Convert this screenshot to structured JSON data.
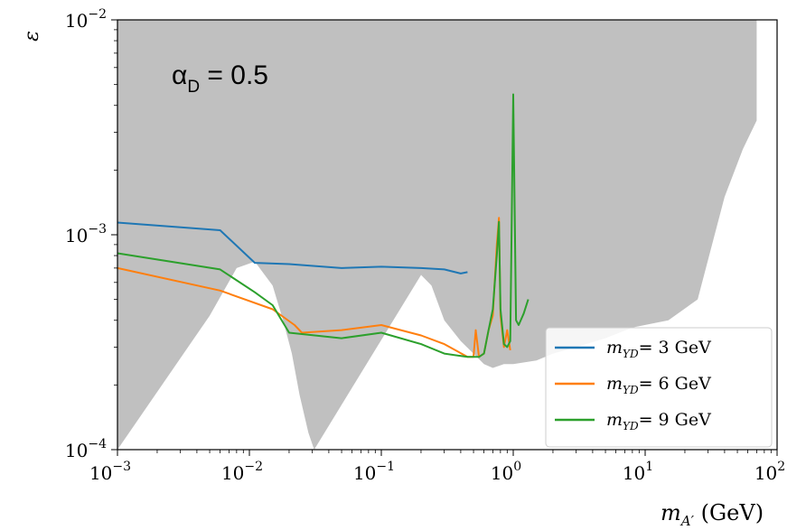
{
  "chart_data": {
    "type": "line",
    "title": "",
    "annotation": {
      "symbol": "α",
      "subscript": "D",
      "text": " = 0.5"
    },
    "xlabel": {
      "base": "m",
      "sub": "A′",
      "unit": " (GeV)"
    },
    "ylabel": "ε",
    "xscale": "log",
    "yscale": "log",
    "xlim": [
      0.001,
      100
    ],
    "ylim": [
      0.0001,
      0.01
    ],
    "x_ticks": [
      {
        "value": 0.001,
        "base": "10",
        "exp": "−3"
      },
      {
        "value": 0.01,
        "base": "10",
        "exp": "−2"
      },
      {
        "value": 0.1,
        "base": "10",
        "exp": "−1"
      },
      {
        "value": 1,
        "base": "10",
        "exp": "0"
      },
      {
        "value": 10,
        "base": "10",
        "exp": "1"
      },
      {
        "value": 100,
        "base": "10",
        "exp": "2"
      }
    ],
    "y_ticks": [
      {
        "value": 0.0001,
        "base": "10",
        "exp": "−4"
      },
      {
        "value": 0.001,
        "base": "10",
        "exp": "−3"
      },
      {
        "value": 0.01,
        "base": "10",
        "exp": "−2"
      }
    ],
    "grid": false,
    "legend": "bottom-right",
    "excluded_region_color": "#c0c0c0",
    "excluded_region_upper_edge": [
      [
        0.001,
        0.01
      ],
      [
        0.08,
        0.01
      ],
      [
        0.1,
        0.01
      ],
      [
        1.0,
        0.01
      ],
      [
        70,
        0.01
      ]
    ],
    "excluded_region_lower_edge": [
      [
        0.001,
        0.0001
      ],
      [
        0.005,
        0.00042
      ],
      [
        0.008,
        0.0007
      ],
      [
        0.011,
        0.00075
      ],
      [
        0.015,
        0.00058
      ],
      [
        0.018,
        0.0004
      ],
      [
        0.021,
        0.00028
      ],
      [
        0.024,
        0.00018
      ],
      [
        0.028,
        0.00012
      ],
      [
        0.031,
        0.0001
      ],
      [
        0.2,
        0.00065
      ],
      [
        0.24,
        0.00058
      ],
      [
        0.3,
        0.0004
      ],
      [
        0.4,
        0.00032
      ],
      [
        0.5,
        0.00028
      ],
      [
        0.6,
        0.00025
      ],
      [
        0.7,
        0.00024
      ],
      [
        0.85,
        0.00025
      ],
      [
        1.0,
        0.00025
      ],
      [
        1.5,
        0.00026
      ],
      [
        2,
        0.00028
      ],
      [
        3,
        0.0003
      ],
      [
        5,
        0.00033
      ],
      [
        8,
        0.00037
      ],
      [
        15,
        0.0004
      ],
      [
        25,
        0.0005
      ],
      [
        40,
        0.0015
      ],
      [
        55,
        0.0025
      ],
      [
        70,
        0.0034
      ]
    ],
    "series": [
      {
        "name": "= 3 GeV",
        "color": "#1f77b4",
        "points": [
          [
            0.001,
            0.00114
          ],
          [
            0.006,
            0.00105
          ],
          [
            0.011,
            0.00074
          ],
          [
            0.02,
            0.00073
          ],
          [
            0.05,
            0.0007
          ],
          [
            0.1,
            0.00071
          ],
          [
            0.2,
            0.0007
          ],
          [
            0.3,
            0.00069
          ],
          [
            0.4,
            0.00066
          ],
          [
            0.45,
            0.00067
          ]
        ]
      },
      {
        "name": "= 6 GeV",
        "color": "#ff7f0e",
        "points": [
          [
            0.001,
            0.0007
          ],
          [
            0.006,
            0.00055
          ],
          [
            0.015,
            0.00045
          ],
          [
            0.022,
            0.00038
          ],
          [
            0.025,
            0.00035
          ],
          [
            0.05,
            0.00036
          ],
          [
            0.1,
            0.00038
          ],
          [
            0.2,
            0.00034
          ],
          [
            0.3,
            0.00031
          ],
          [
            0.45,
            0.00027
          ],
          [
            0.5,
            0.00027
          ],
          [
            0.52,
            0.00036
          ],
          [
            0.55,
            0.00027
          ],
          [
            0.6,
            0.00028
          ],
          [
            0.65,
            0.00036
          ],
          [
            0.7,
            0.00042
          ],
          [
            0.75,
            0.0009
          ],
          [
            0.78,
            0.0012
          ],
          [
            0.8,
            0.00042
          ],
          [
            0.85,
            0.0003
          ],
          [
            0.9,
            0.00036
          ],
          [
            0.95,
            0.00029
          ]
        ]
      },
      {
        "name": "= 9 GeV",
        "color": "#2ca02c",
        "points": [
          [
            0.001,
            0.00082
          ],
          [
            0.006,
            0.00069
          ],
          [
            0.011,
            0.00054
          ],
          [
            0.015,
            0.00047
          ],
          [
            0.02,
            0.00035
          ],
          [
            0.05,
            0.00033
          ],
          [
            0.1,
            0.00035
          ],
          [
            0.2,
            0.00031
          ],
          [
            0.3,
            0.00028
          ],
          [
            0.45,
            0.00027
          ],
          [
            0.55,
            0.00027
          ],
          [
            0.6,
            0.00028
          ],
          [
            0.65,
            0.00036
          ],
          [
            0.7,
            0.00045
          ],
          [
            0.75,
            0.0008
          ],
          [
            0.78,
            0.00115
          ],
          [
            0.8,
            0.00045
          ],
          [
            0.85,
            0.00031
          ],
          [
            0.9,
            0.0003
          ],
          [
            0.95,
            0.00032
          ],
          [
            1.0,
            0.0045
          ],
          [
            1.05,
            0.0004
          ],
          [
            1.1,
            0.00038
          ],
          [
            1.2,
            0.00043
          ],
          [
            1.3,
            0.0005
          ]
        ]
      }
    ],
    "legend_entries": [
      {
        "base": "m",
        "sub": "ΥD",
        "text": "= 3 GeV",
        "color": "#1f77b4"
      },
      {
        "base": "m",
        "sub": "ΥD",
        "text": "= 6 GeV",
        "color": "#ff7f0e"
      },
      {
        "base": "m",
        "sub": "ΥD",
        "text": "= 9 GeV",
        "color": "#2ca02c"
      }
    ]
  }
}
